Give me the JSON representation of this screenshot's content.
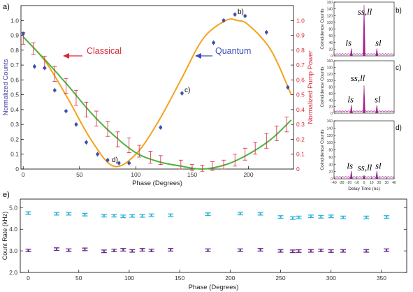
{
  "chart_data": [
    {
      "panel": "a)",
      "type": "line",
      "xlabel": "Phase (Degrees)",
      "ylabel": "Normalized Counts",
      "ylabel_right": "Normalized Pump Power",
      "xlim": [
        -2,
        240
      ],
      "ylim": [
        0,
        1.1
      ],
      "ylim_right": [
        0,
        1.1
      ],
      "xticks": [
        "0",
        "50",
        "100",
        "150",
        "200"
      ],
      "yticks": [
        "0",
        "0.1",
        "0.2",
        "0.3",
        "0.4",
        "0.5",
        "0.6",
        "0.7",
        "0.8",
        "0.9",
        "1.0"
      ],
      "yticks_right": [
        "0",
        "0.1",
        "0.2",
        "0.3",
        "0.4",
        "0.5",
        "0.6",
        "0.7",
        "0.8",
        "0.9",
        "1.0"
      ],
      "annotations": {
        "classical": "Classical",
        "quantum": "Quantum",
        "b": "b)",
        "c": "c)",
        "d": "d)"
      },
      "colors": {
        "quantum": "#3a4fb5",
        "classical": "#d6283a",
        "fit_quantum": "#f5a21e",
        "fit_classical": "#4fb33e",
        "left_axis": "#3b3a9c",
        "right_axis": "#d6283a"
      },
      "series": [
        {
          "kind": "quantum-data",
          "x": [
            0,
            10,
            19,
            28,
            38,
            47,
            56,
            66,
            75,
            85,
            94,
            122,
            141,
            169,
            178,
            188,
            197,
            216,
            235
          ],
          "y": [
            0.91,
            0.69,
            0.68,
            0.53,
            0.39,
            0.3,
            0.18,
            0.1,
            0.06,
            0.04,
            0.04,
            0.28,
            0.51,
            0.85,
            1.0,
            1.04,
            1.03,
            0.92,
            0.55
          ],
          "err": [
            0.015,
            0.015,
            0.015,
            0.015,
            0.015,
            0.015,
            0.015,
            0.015,
            0.015,
            0.015,
            0.015,
            0.015,
            0.015,
            0.015,
            0.015,
            0.015,
            0.015,
            0.015,
            0.015
          ]
        },
        {
          "kind": "classical-data",
          "x": [
            0,
            9,
            19,
            28,
            38,
            47,
            56,
            65,
            75,
            84,
            94,
            103,
            113,
            122,
            140,
            150,
            159,
            168,
            178,
            188,
            197,
            206,
            216,
            225,
            234
          ],
          "y": [
            0.88,
            0.81,
            0.72,
            0.64,
            0.56,
            0.48,
            0.4,
            0.34,
            0.27,
            0.2,
            0.16,
            0.12,
            0.08,
            0.06,
            0.03,
            0.01,
            0.005,
            0.02,
            0.03,
            0.06,
            0.1,
            0.14,
            0.19,
            0.24,
            0.3
          ],
          "err": [
            0.04,
            0.04,
            0.04,
            0.05,
            0.05,
            0.05,
            0.05,
            0.05,
            0.05,
            0.05,
            0.05,
            0.04,
            0.04,
            0.03,
            0.03,
            0.02,
            0.02,
            0.03,
            0.03,
            0.04,
            0.04,
            0.04,
            0.05,
            0.05,
            0.05
          ]
        }
      ]
    },
    {
      "panel": "b)",
      "type": "bar",
      "ylabel": "Coincidence Counts",
      "ylim": [
        0,
        160
      ],
      "yticks": [
        "0",
        "20",
        "40",
        "60",
        "80",
        "100",
        "120",
        "140",
        "160"
      ],
      "peaks": [
        {
          "x": -17,
          "y": 22,
          "label": "ls"
        },
        {
          "x": 0,
          "y": 152,
          "label": "ss,ll"
        },
        {
          "x": 17,
          "y": 22,
          "label": "sl"
        }
      ]
    },
    {
      "panel": "c)",
      "type": "bar",
      "ylabel": "Coincidence Counts",
      "ylim": [
        0,
        160
      ],
      "yticks": [
        "0",
        "20",
        "40",
        "60",
        "80",
        "100",
        "120",
        "140",
        "160"
      ],
      "peaks": [
        {
          "x": -17,
          "y": 25,
          "label": "ls"
        },
        {
          "x": 0,
          "y": 85,
          "label": "ss,ll"
        },
        {
          "x": 17,
          "y": 25,
          "label": "sl"
        }
      ]
    },
    {
      "panel": "d)",
      "type": "bar",
      "ylabel": "Coincidence Counts",
      "ylim": [
        0,
        160
      ],
      "yticks": [
        "0",
        "20",
        "40",
        "60",
        "80",
        "100",
        "120",
        "140",
        "160"
      ],
      "xlabel": "Delay Time (ns)",
      "xlim": [
        -40,
        40
      ],
      "xticks": [
        "-40",
        "-30",
        "-20",
        "-10",
        "0",
        "10",
        "20",
        "30",
        "40"
      ],
      "peaks": [
        {
          "x": -17,
          "y": 22,
          "label": "ls"
        },
        {
          "x": 0,
          "y": 10,
          "label": "ss,ll"
        },
        {
          "x": 17,
          "y": 22,
          "label": "sl"
        }
      ]
    },
    {
      "panel": "e)",
      "type": "scatter",
      "xlabel": "Phase (Degrees)",
      "ylabel": "Count Rate (kHz)",
      "xlim": [
        -8,
        375
      ],
      "ylim": [
        2.0,
        5.4
      ],
      "xticks": [
        "0",
        "50",
        "100",
        "150",
        "200",
        "250",
        "300",
        "350"
      ],
      "yticks": [
        "2.0",
        "3.0",
        "4.0",
        "5.0"
      ],
      "colors": {
        "upper": "#2bb3d6",
        "lower": "#6a2a8a"
      },
      "series": [
        {
          "kind": "upper",
          "x": [
            0,
            28,
            40,
            56,
            75,
            85,
            94,
            103,
            113,
            122,
            141,
            178,
            210,
            230,
            250,
            262,
            268,
            280,
            290,
            300,
            312,
            335,
            355
          ],
          "y": [
            4.75,
            4.72,
            4.72,
            4.68,
            4.63,
            4.63,
            4.6,
            4.62,
            4.62,
            4.65,
            4.65,
            4.7,
            4.73,
            4.72,
            4.57,
            4.52,
            4.55,
            4.6,
            4.58,
            4.6,
            4.55,
            4.55,
            4.57
          ]
        },
        {
          "kind": "lower",
          "x": [
            0,
            28,
            40,
            56,
            75,
            85,
            94,
            103,
            113,
            122,
            141,
            178,
            210,
            230,
            250,
            262,
            268,
            280,
            290,
            300,
            312,
            335,
            355
          ],
          "y": [
            3.02,
            3.08,
            3.03,
            3.07,
            2.98,
            3.02,
            3.05,
            3.0,
            3.05,
            3.02,
            3.05,
            3.03,
            3.03,
            3.05,
            3.0,
            2.98,
            2.99,
            3.0,
            3.02,
            2.99,
            3.0,
            3.0,
            3.03
          ]
        }
      ]
    }
  ]
}
